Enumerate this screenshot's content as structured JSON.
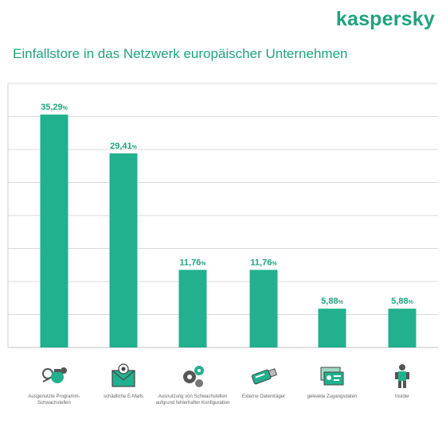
{
  "logo": "kaspersky",
  "title": "Einfallstore in das Netzwerk europäischer Unternehmen",
  "colors": {
    "bar": "#22b08e",
    "text": "#1fa37f",
    "grid": "#cfcfcf"
  },
  "chart_data": {
    "type": "bar",
    "title": "Einfallstore in das Netzwerk europäischer Unternehmen",
    "categories": [
      "Ausgenutzte Programm-Schwachstellen",
      "schädliche E-Mails",
      "Ausnutzung von Schwachstellen aufgrund fehlerhafter Konfiguration",
      "Externe Datenträger",
      "geleakte Zugangsdaten",
      "Insider"
    ],
    "values": [
      35.29,
      29.41,
      11.76,
      11.76,
      5.88,
      5.88
    ],
    "data_labels": [
      "35,29",
      "29,41",
      "11,76",
      "11,76",
      "5,88",
      "5,88"
    ],
    "unit": "%",
    "ylim": [
      0,
      40
    ],
    "grid": true,
    "icons": [
      "bug-gear-icon",
      "envelope-icon",
      "gears-icon",
      "usb-drive-icon",
      "id-cards-icon",
      "insider-person-icon"
    ]
  }
}
